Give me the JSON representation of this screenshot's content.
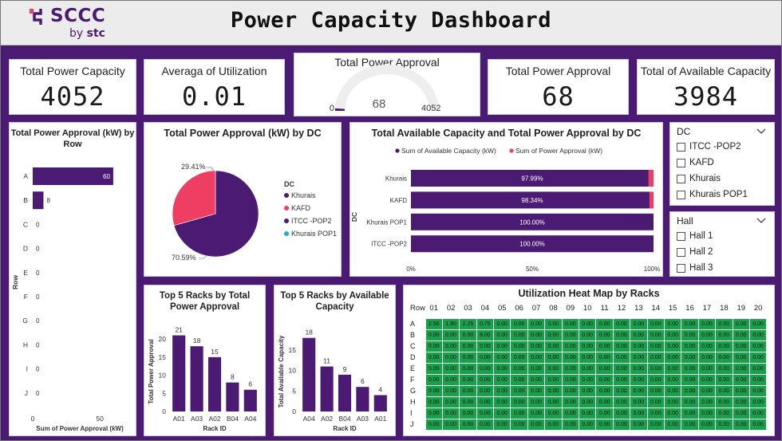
{
  "header": {
    "logo_text": "SCCC",
    "logo_sub_by": "by",
    "logo_sub_brand": "stc",
    "title": "Power Capacity Dashboard"
  },
  "colors": {
    "purple": "#4b1a72",
    "pink": "#ee3f63",
    "cyan": "#27a9d6",
    "green": "#19a04c"
  },
  "kpis": {
    "total_power_capacity": {
      "label": "Total Power Capacity",
      "value": "4052"
    },
    "avg_utilization": {
      "label": "Averaga of Utilization",
      "value": "0.01"
    },
    "total_power_approval_gauge": {
      "label": "Total Power Approval",
      "value": "68",
      "min": "0",
      "max": "4052"
    },
    "total_power_approval": {
      "label": "Total Power Approval",
      "value": "68"
    },
    "total_available_capacity": {
      "label": "Total of Available Capacity",
      "value": "3984"
    }
  },
  "chart_data": [
    {
      "id": "approval_by_row",
      "type": "bar",
      "orientation": "horizontal",
      "title": "Total Power Approval (kW) by Row",
      "xlabel": "Sum of Power Approval (kW)",
      "ylabel": "Row",
      "categories": [
        "A",
        "B",
        "C",
        "D",
        "E",
        "F",
        "G",
        "H",
        "I",
        "J"
      ],
      "values": [
        60,
        8,
        0,
        0,
        0,
        0,
        0,
        0,
        0,
        0
      ],
      "xticks": [
        "0",
        "50"
      ],
      "xlim": [
        0,
        66
      ]
    },
    {
      "id": "approval_by_dc_pie",
      "type": "pie",
      "title": "Total Power Approval (kW) by DC",
      "legend_title": "DC",
      "legend": [
        "Khurais",
        "KAFD",
        "ITCC -POP2",
        "Khurais POP1"
      ],
      "slices": [
        {
          "name": "Khurais",
          "value": 70.59,
          "label": "70.59%",
          "color": "#4b1a72"
        },
        {
          "name": "KAFD",
          "value": 29.41,
          "label": "29.41%",
          "color": "#ee3f63"
        }
      ],
      "legend_colors": [
        "#4b1a72",
        "#ee3f63",
        "#4b1a72",
        "#27a9d6"
      ]
    },
    {
      "id": "available_vs_approval_by_dc",
      "type": "bar",
      "orientation": "horizontal-stacked-100",
      "title": "Total Available Capacity and Total Power Approval by DC",
      "ylabel": "DC",
      "series_names": [
        "Sum of Available Capacity (kW)",
        "Sum of Power Approval (kW)"
      ],
      "categories": [
        "Khurais",
        "KAFD",
        "Khurais POP1",
        "ITCC -POP2"
      ],
      "available_pct": [
        97.99,
        98.34,
        100.0,
        100.0
      ],
      "labels": [
        "97.99%",
        "98.34%",
        "100.00%",
        "100.00%"
      ],
      "xticks": [
        "0%",
        "50%",
        "100%"
      ]
    },
    {
      "id": "top5_power_approval",
      "type": "bar",
      "title": "Top 5 Racks by Total Power Approval",
      "xlabel": "Rack ID",
      "ylabel": "Total Power Approval",
      "categories": [
        "A01",
        "A03",
        "A02",
        "B04",
        "A04"
      ],
      "values": [
        21,
        18,
        15,
        8,
        6
      ],
      "yticks": [
        "0",
        "5",
        "10",
        "15",
        "20"
      ],
      "ylim": [
        0,
        22
      ]
    },
    {
      "id": "top5_available_capacity",
      "type": "bar",
      "title": "Top 5 Racks by Available Capacity",
      "xlabel": "Rack ID",
      "ylabel": "Total Available Capacity",
      "categories": [
        "A04",
        "A02",
        "B04",
        "A03",
        "A01"
      ],
      "values": [
        18,
        11,
        9,
        6,
        4
      ],
      "yticks": [
        "0",
        "5",
        "10",
        "15"
      ],
      "ylim": [
        0,
        19.5
      ]
    },
    {
      "id": "utilization_heatmap",
      "type": "heatmap",
      "title": "Utilization Heat Map by Racks",
      "row_header": "Row",
      "columns": [
        "01",
        "02",
        "03",
        "04",
        "05",
        "06",
        "07",
        "08",
        "09",
        "10",
        "11",
        "12",
        "13",
        "14",
        "15",
        "16",
        "17",
        "18",
        "19",
        "20"
      ],
      "rows": [
        "A",
        "B",
        "C",
        "D",
        "E",
        "F",
        "G",
        "H",
        "I",
        "J"
      ],
      "values": [
        [
          "2.56",
          "1.80",
          "2.25",
          "0.75",
          "0.00",
          "0.00",
          "0.00",
          "0.00",
          "0.00",
          "0.00",
          "0.00",
          "0.00",
          "0.00",
          "0.00",
          "0.00",
          "0.00",
          "0.00",
          "0.00",
          "0.00",
          "0.00"
        ],
        [
          "0.00",
          "0.00",
          "0.00",
          "8.00",
          "0.00",
          "0.00",
          "0.00",
          "0.00",
          "0.00",
          "0.00",
          "0.00",
          "0.00",
          "0.00",
          "0.00",
          "0.00",
          "0.00",
          "0.00",
          "0.00",
          "0.00",
          "0.00"
        ],
        [
          "0.00",
          "0.00",
          "0.00",
          "0.00",
          "0.00",
          "0.00",
          "0.00",
          "0.00",
          "0.00",
          "0.00",
          "0.00",
          "0.00",
          "0.00",
          "0.00",
          "0.00",
          "0.00",
          "0.00",
          "0.00",
          "0.00",
          "0.00"
        ],
        [
          "0.00",
          "0.00",
          "0.00",
          "0.00",
          "0.00",
          "0.00",
          "0.00",
          "0.00",
          "0.00",
          "0.00",
          "0.00",
          "0.00",
          "0.00",
          "0.00",
          "0.00",
          "0.00",
          "0.00",
          "0.00",
          "0.00",
          "0.00"
        ],
        [
          "0.00",
          "0.00",
          "0.00",
          "0.00",
          "0.00",
          "0.00",
          "0.00",
          "0.00",
          "0.00",
          "0.00",
          "0.00",
          "0.00",
          "0.00",
          "0.00",
          "0.00",
          "0.00",
          "0.00",
          "0.00",
          "0.00",
          "0.00"
        ],
        [
          "0.00",
          "0.00",
          "0.00",
          "0.00",
          "0.00",
          "0.00",
          "0.00",
          "0.00",
          "0.00",
          "0.00",
          "0.00",
          "0.00",
          "0.00",
          "0.00",
          "0.00",
          "0.00",
          "0.00",
          "0.00",
          "0.00",
          "0.00"
        ],
        [
          "0.00",
          "0.00",
          "0.00",
          "0.00",
          "0.00",
          "0.00",
          "0.00",
          "0.00",
          "0.00",
          "0.00",
          "0.00",
          "0.00",
          "0.00",
          "0.00",
          "0.00",
          "0.00",
          "0.00",
          "0.00",
          "0.00",
          "0.00"
        ],
        [
          "0.00",
          "0.00",
          "0.00",
          "0.00",
          "0.00",
          "0.00",
          "0.00",
          "0.00",
          "0.00",
          "0.00",
          "0.00",
          "0.00",
          "0.00",
          "0.00",
          "0.00",
          "0.00",
          "0.00",
          "0.00",
          "0.00",
          "0.00"
        ],
        [
          "0.00",
          "0.00",
          "0.00",
          "0.00",
          "0.00",
          "0.00",
          "0.00",
          "0.00",
          "0.00",
          "0.00",
          "0.00",
          "0.00",
          "0.00",
          "0.00",
          "0.00",
          "0.00",
          "0.00",
          "0.00",
          "0.00",
          "0.00"
        ],
        [
          "0.00",
          "0.00",
          "0.00",
          "0.00",
          "0.00",
          "0.00",
          "0.00",
          "0.00",
          "0.00",
          "0.00",
          "0.00",
          "0.00",
          "0.00",
          "0.00",
          "0.00",
          "0.00",
          "0.00",
          "0.00",
          "0.00",
          "0.00"
        ]
      ]
    }
  ],
  "slicers": {
    "dc": {
      "title": "DC",
      "icon": "chevron-down-icon",
      "items": [
        "ITCC -POP2",
        "KAFD",
        "Khurais",
        "Khurais POP1"
      ]
    },
    "hall": {
      "title": "Hall",
      "icon": "chevron-down-icon",
      "items": [
        "Hall 1",
        "Hall 2",
        "Hall 3"
      ]
    }
  }
}
